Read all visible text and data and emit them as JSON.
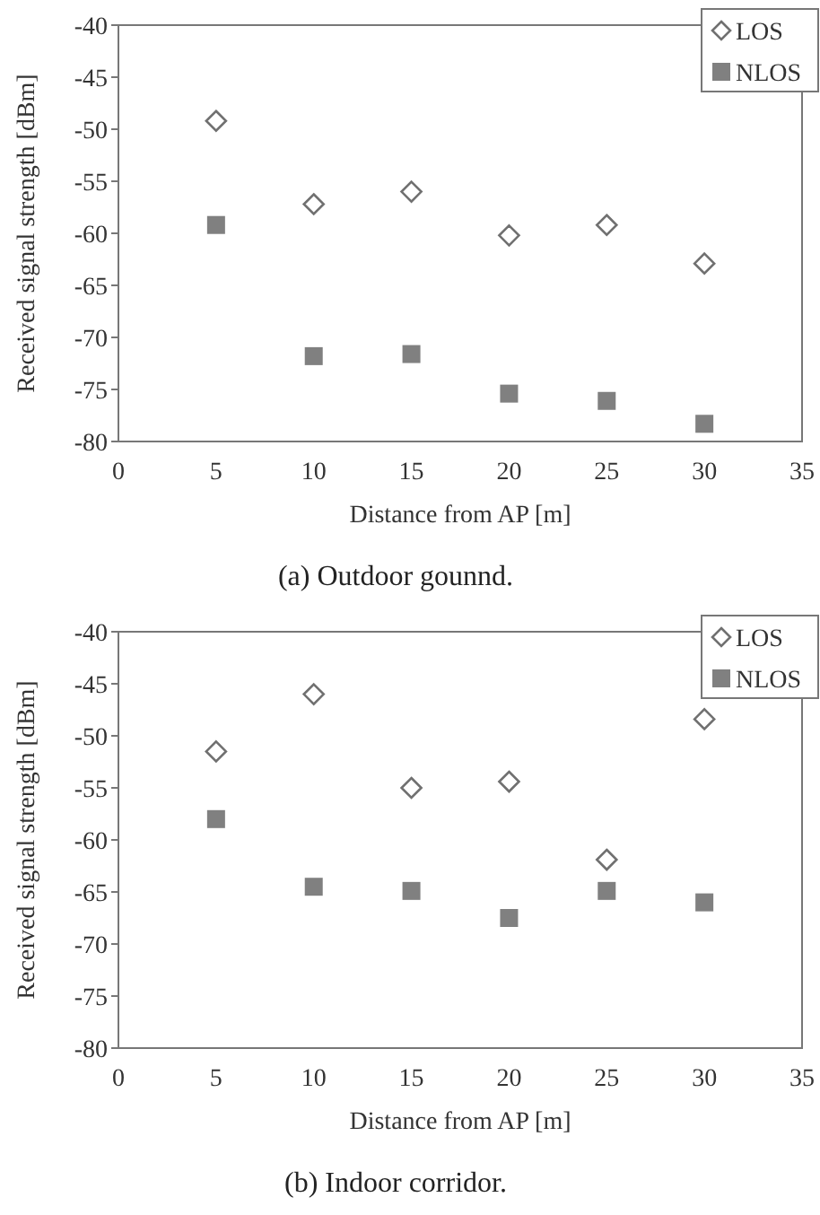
{
  "chart_data": [
    {
      "type": "scatter",
      "title": "(a) Outdoor gounnd.",
      "xlabel": "Distance from AP [m]",
      "ylabel": "Received signal strength [dBm]",
      "x": [
        5,
        10,
        15,
        20,
        25,
        30
      ],
      "xlim": [
        0,
        35
      ],
      "xticks": [
        0,
        5,
        10,
        15,
        20,
        25,
        30,
        35
      ],
      "ylim": [
        -80,
        -40
      ],
      "yticks": [
        -80,
        -75,
        -70,
        -65,
        -60,
        -55,
        -50,
        -45,
        -40
      ],
      "grid": false,
      "legend": "top right",
      "series": [
        {
          "name": "LOS",
          "color": "#707070",
          "marker": "diamond",
          "values": [
            -49.2,
            -57.2,
            -56,
            -60.2,
            -59.2,
            -62.9
          ]
        },
        {
          "name": "NLOS",
          "color": "#808080",
          "marker": "square",
          "values": [
            -59.2,
            -71.8,
            -71.6,
            -75.4,
            -76.1,
            -78.3
          ]
        }
      ]
    },
    {
      "type": "scatter",
      "title": "(b) Indoor corridor.",
      "xlabel": "Distance from AP [m]",
      "ylabel": "Received signal strength [dBm]",
      "x": [
        5,
        10,
        15,
        20,
        25,
        30
      ],
      "xlim": [
        0,
        35
      ],
      "xticks": [
        0,
        5,
        10,
        15,
        20,
        25,
        30,
        35
      ],
      "ylim": [
        -80,
        -40
      ],
      "yticks": [
        -80,
        -75,
        -70,
        -65,
        -60,
        -55,
        -50,
        -45,
        -40
      ],
      "grid": false,
      "legend": "top right",
      "series": [
        {
          "name": "LOS",
          "color": "#707070",
          "marker": "diamond",
          "values": [
            -51.5,
            -46,
            -55,
            -54.4,
            -61.9,
            -48.4
          ]
        },
        {
          "name": "NLOS",
          "color": "#808080",
          "marker": "square",
          "values": [
            -58,
            -64.5,
            -64.9,
            -67.5,
            -64.9,
            -66
          ]
        }
      ]
    }
  ]
}
